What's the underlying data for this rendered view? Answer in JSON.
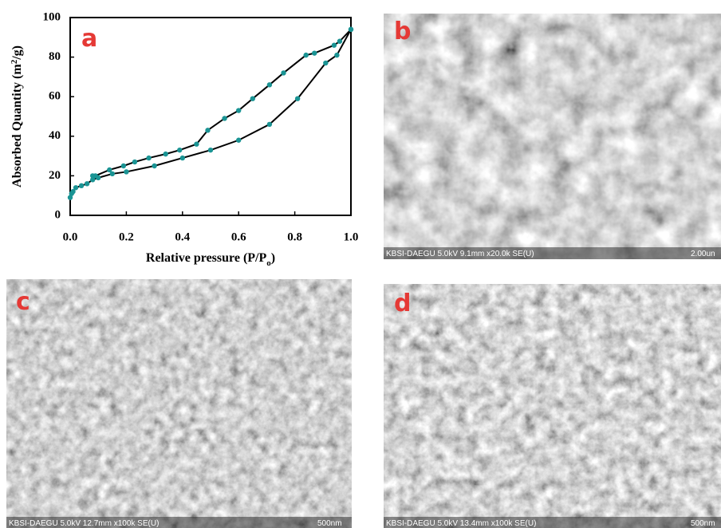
{
  "chart_data": {
    "type": "line",
    "label": "a",
    "xlabel": [
      "Relative pressure (P/P",
      "o",
      ")"
    ],
    "ylabel": [
      "Absorbed Quantity (m",
      "2",
      "/g)"
    ],
    "xlim": [
      0,
      1
    ],
    "ylim": [
      0,
      100
    ],
    "xticks": [
      {
        "value": 0,
        "label": "0.0"
      },
      {
        "value": 0.2,
        "label": "0.2"
      },
      {
        "value": 0.4,
        "label": "0.4"
      },
      {
        "value": 0.6,
        "label": "0.6"
      },
      {
        "value": 0.8,
        "label": "0.8"
      },
      {
        "value": 1,
        "label": "1.0"
      }
    ],
    "yticks": [
      0,
      20,
      40,
      60,
      80,
      100
    ],
    "line_color": "#000000",
    "marker_color": "#1a9494",
    "series": [
      {
        "x": [
          0.0,
          0.005,
          0.01,
          0.02,
          0.04,
          0.06,
          0.08,
          0.1,
          0.15,
          0.2,
          0.3,
          0.4,
          0.5,
          0.6,
          0.71,
          0.81,
          0.91,
          0.95,
          1.0
        ],
        "values": [
          9,
          11,
          12,
          14,
          15,
          16,
          18,
          19,
          21,
          22,
          25,
          29,
          33,
          38,
          46,
          59,
          77,
          81,
          94
        ]
      },
      {
        "x": [
          1.0,
          0.96,
          0.94,
          0.87,
          0.84,
          0.76,
          0.71,
          0.65,
          0.6,
          0.55,
          0.49,
          0.45,
          0.39,
          0.34,
          0.28,
          0.23,
          0.19,
          0.14,
          0.09,
          0.08
        ],
        "values": [
          94,
          88,
          86,
          82,
          81,
          72,
          66,
          59,
          53,
          49,
          43,
          36,
          33,
          31,
          29,
          27,
          25,
          23,
          20,
          20
        ]
      }
    ]
  },
  "panels": [
    {
      "label": "b",
      "info": "KBSI-DAEGU 5.0kV 9.1mm x20.0k SE(U)",
      "scale": "2.00un"
    },
    {
      "label": "c",
      "info": "KBSI-DAEGU 5.0kV 12.7mm x100k SE(U)",
      "scale": "500nm"
    },
    {
      "label": "d",
      "info": "KBSI-DAEGU 5.0kV 13.4mm x100k SE(U)",
      "scale": "500nm"
    }
  ]
}
